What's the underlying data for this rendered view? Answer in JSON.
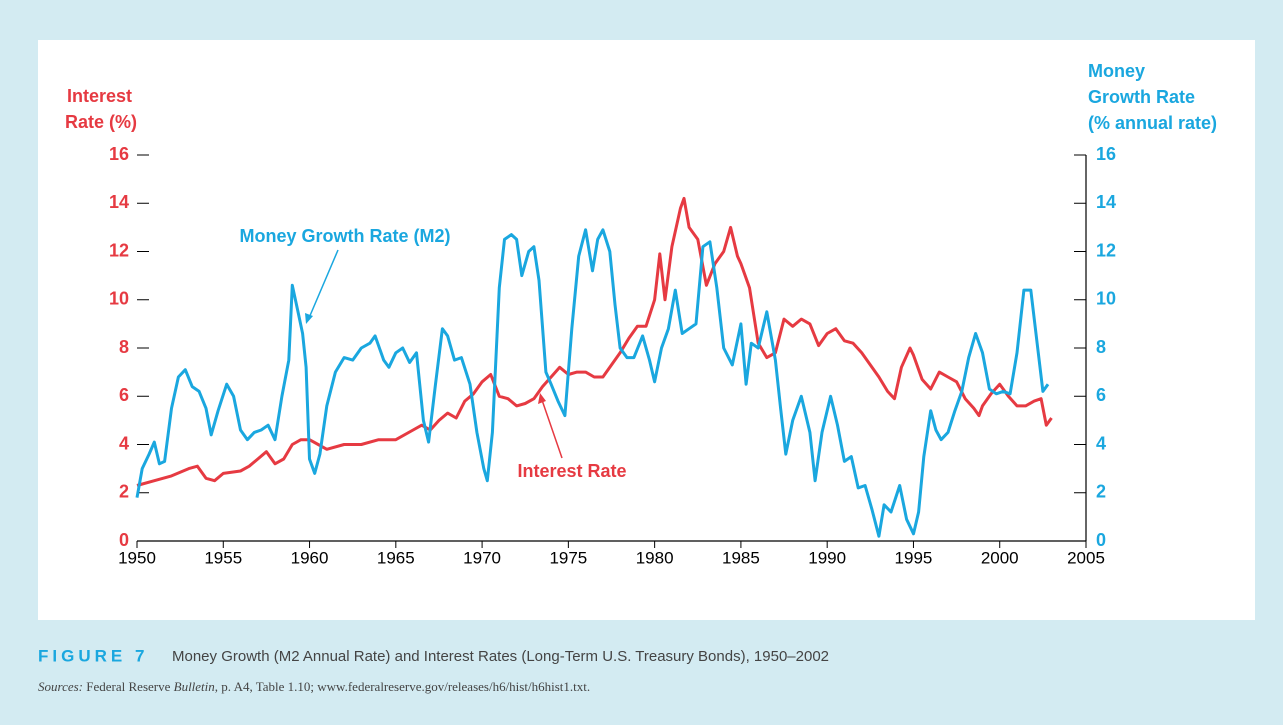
{
  "chart_data": {
    "type": "line",
    "y_label": [
      "Interest",
      "Rate (%)"
    ],
    "y2_label": [
      "Money",
      "Growth Rate",
      "(% annual rate)"
    ],
    "xlim": [
      1950,
      2005
    ],
    "xticks": [
      1950,
      1955,
      1960,
      1965,
      1970,
      1975,
      1980,
      1985,
      1990,
      1995,
      2000,
      2005
    ],
    "ylim": [
      0,
      16
    ],
    "yticks": [
      0,
      2,
      4,
      6,
      8,
      10,
      12,
      14,
      16
    ],
    "y2lim": [
      0,
      16
    ],
    "y2ticks": [
      0,
      2,
      4,
      6,
      8,
      10,
      12,
      14,
      16
    ],
    "annotations": [
      {
        "text": "Money Growth Rate (M2)"
      },
      {
        "text": "Interest Rate"
      }
    ],
    "series": [
      {
        "name": "Interest Rate",
        "color": "#e63a42",
        "axis": "y",
        "x": [
          1950,
          1951,
          1952,
          1953,
          1953.5,
          1954,
          1954.5,
          1955,
          1956,
          1956.5,
          1957,
          1957.5,
          1958,
          1958.5,
          1959,
          1959.5,
          1960,
          1960.5,
          1961,
          1962,
          1963,
          1964,
          1965,
          1966,
          1966.5,
          1967,
          1967.5,
          1968,
          1968.5,
          1969,
          1969.5,
          1970,
          1970.5,
          1971,
          1971.5,
          1972,
          1972.5,
          1973,
          1973.5,
          1974,
          1974.5,
          1975,
          1975.5,
          1976,
          1976.5,
          1977,
          1977.5,
          1978,
          1978.5,
          1979,
          1979.5,
          1980,
          1980.3,
          1980.6,
          1981,
          1981.5,
          1981.7,
          1982,
          1982.5,
          1983,
          1983.5,
          1984,
          1984.4,
          1984.8,
          1985,
          1985.5,
          1986,
          1986.5,
          1987,
          1987.5,
          1988,
          1988.5,
          1989,
          1989.5,
          1990,
          1990.5,
          1991,
          1991.5,
          1992,
          1992.5,
          1993,
          1993.5,
          1993.9,
          1994.3,
          1994.8,
          1995,
          1995.5,
          1996,
          1996.5,
          1997,
          1997.5,
          1998,
          1998.5,
          1998.8,
          1999,
          1999.5,
          2000,
          2000.5,
          2001,
          2001.5,
          2002,
          2002.4,
          2002.7,
          2003
        ],
        "values": [
          2.3,
          2.5,
          2.7,
          3.0,
          3.1,
          2.6,
          2.5,
          2.8,
          2.9,
          3.1,
          3.4,
          3.7,
          3.2,
          3.4,
          4.0,
          4.2,
          4.2,
          4.0,
          3.8,
          4.0,
          4.0,
          4.2,
          4.2,
          4.6,
          4.8,
          4.6,
          5.0,
          5.3,
          5.1,
          5.8,
          6.1,
          6.6,
          6.9,
          6.0,
          5.9,
          5.6,
          5.7,
          5.9,
          6.4,
          6.8,
          7.2,
          6.9,
          7.0,
          7.0,
          6.8,
          6.8,
          7.3,
          7.8,
          8.4,
          8.9,
          8.9,
          10.0,
          11.9,
          10.0,
          12.2,
          13.8,
          14.2,
          13.0,
          12.5,
          10.6,
          11.5,
          12.0,
          13.0,
          11.8,
          11.5,
          10.5,
          8.2,
          7.6,
          7.8,
          9.2,
          8.9,
          9.2,
          9.0,
          8.1,
          8.6,
          8.8,
          8.3,
          8.2,
          7.8,
          7.3,
          6.8,
          6.2,
          5.9,
          7.2,
          8.0,
          7.7,
          6.7,
          6.3,
          7.0,
          6.8,
          6.6,
          5.9,
          5.5,
          5.2,
          5.6,
          6.1,
          6.5,
          6.0,
          5.6,
          5.6,
          5.8,
          5.9,
          4.8,
          5.1
        ]
      },
      {
        "name": "Money Growth Rate (M2)",
        "color": "#1aa7df",
        "axis": "y2",
        "x": [
          1950,
          1950.3,
          1950.7,
          1951,
          1951.3,
          1951.6,
          1952,
          1952.4,
          1952.8,
          1953.2,
          1953.6,
          1954,
          1954.3,
          1954.7,
          1955.2,
          1955.6,
          1956,
          1956.4,
          1956.8,
          1957.2,
          1957.6,
          1958,
          1958.4,
          1958.8,
          1959,
          1959.3,
          1959.6,
          1959.8,
          1960,
          1960.3,
          1960.6,
          1961,
          1961.5,
          1962,
          1962.5,
          1963,
          1963.5,
          1963.8,
          1964.3,
          1964.6,
          1965,
          1965.4,
          1965.8,
          1966.2,
          1966.6,
          1966.9,
          1967.3,
          1967.7,
          1968,
          1968.4,
          1968.8,
          1969.3,
          1969.7,
          1970.1,
          1970.3,
          1970.6,
          1971,
          1971.3,
          1971.7,
          1972,
          1972.3,
          1972.7,
          1973,
          1973.3,
          1973.7,
          1974,
          1974.4,
          1974.8,
          1975.2,
          1975.6,
          1976,
          1976.4,
          1976.7,
          1977,
          1977.4,
          1977.7,
          1978,
          1978.4,
          1978.8,
          1979.3,
          1979.7,
          1980,
          1980.4,
          1980.8,
          1981.2,
          1981.6,
          1982,
          1982.4,
          1982.8,
          1983.2,
          1983.6,
          1984,
          1984.5,
          1985,
          1985.3,
          1985.6,
          1986,
          1986.5,
          1987,
          1987.3,
          1987.6,
          1988,
          1988.5,
          1989,
          1989.3,
          1989.7,
          1990.2,
          1990.6,
          1991,
          1991.4,
          1991.8,
          1992.2,
          1992.6,
          1993,
          1993.3,
          1993.7,
          1994.2,
          1994.6,
          1995,
          1995.3,
          1995.6,
          1996,
          1996.3,
          1996.6,
          1997,
          1997.4,
          1997.8,
          1998.2,
          1998.6,
          1999,
          1999.4,
          1999.8,
          2000.2,
          2000.6,
          2001,
          2001.4,
          2001.8,
          2002.2,
          2002.5,
          2002.8
        ],
        "values": [
          1.8,
          3.0,
          3.6,
          4.1,
          3.2,
          3.3,
          5.5,
          6.8,
          7.1,
          6.4,
          6.2,
          5.5,
          4.4,
          5.4,
          6.5,
          6.0,
          4.6,
          4.2,
          4.5,
          4.6,
          4.8,
          4.2,
          6.0,
          7.5,
          10.6,
          9.6,
          8.6,
          7.2,
          3.4,
          2.8,
          3.6,
          5.6,
          7.0,
          7.6,
          7.5,
          8.0,
          8.2,
          8.5,
          7.5,
          7.2,
          7.8,
          8.0,
          7.4,
          7.8,
          5.0,
          4.1,
          6.5,
          8.8,
          8.5,
          7.5,
          7.6,
          6.5,
          4.5,
          3.0,
          2.5,
          4.5,
          10.5,
          12.5,
          12.7,
          12.5,
          11.0,
          12.0,
          12.2,
          10.8,
          7.0,
          6.5,
          5.8,
          5.2,
          8.8,
          11.8,
          12.9,
          11.2,
          12.5,
          12.9,
          12.0,
          9.8,
          8.0,
          7.6,
          7.6,
          8.5,
          7.5,
          6.6,
          8.0,
          8.8,
          10.4,
          8.6,
          8.8,
          9.0,
          12.2,
          12.4,
          10.5,
          8.0,
          7.3,
          9.0,
          6.5,
          8.2,
          8.0,
          9.5,
          7.5,
          5.5,
          3.6,
          5.0,
          6.0,
          4.5,
          2.5,
          4.5,
          6.0,
          4.8,
          3.3,
          3.5,
          2.2,
          2.3,
          1.3,
          0.2,
          1.5,
          1.2,
          2.3,
          0.9,
          0.3,
          1.2,
          3.5,
          5.4,
          4.6,
          4.2,
          4.5,
          5.4,
          6.2,
          7.6,
          8.6,
          7.8,
          6.3,
          6.1,
          6.2,
          6.1,
          7.8,
          10.4,
          10.4,
          8.0,
          6.2,
          6.5
        ]
      }
    ]
  },
  "caption": {
    "figure_label": "FIGURE 7",
    "text": "Money Growth (M2 Annual Rate) and Interest Rates (Long-Term U.S. Treasury Bonds), 1950–2002",
    "sources": [
      "Sources:",
      " Federal Reserve ",
      "Bulletin",
      ", p. A4, Table 1.10; www.federalreserve.gov/releases/h6/hist/h6hist1.txt."
    ]
  }
}
